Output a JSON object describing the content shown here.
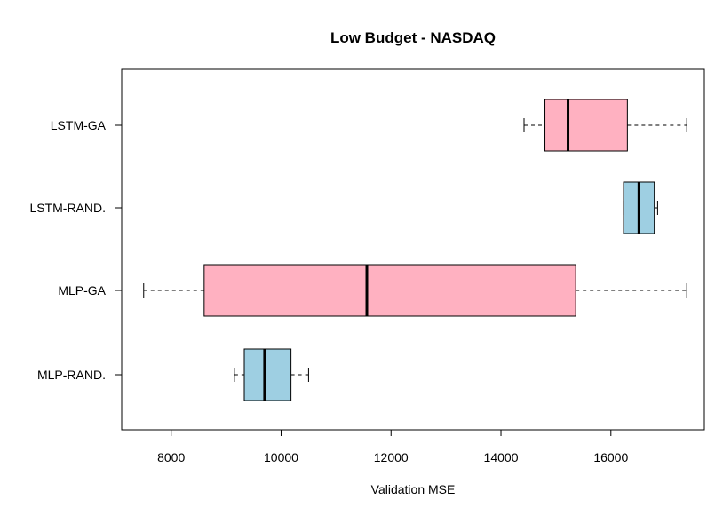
{
  "chart_data": {
    "type": "boxplot",
    "orientation": "horizontal",
    "title": "Low Budget - NASDAQ",
    "xlabel": "Validation MSE",
    "ylabel": "",
    "xlim": [
      7100,
      17700
    ],
    "x_ticks": [
      8000,
      10000,
      12000,
      14000,
      16000
    ],
    "grid": false,
    "legend": "none",
    "categories": [
      "MLP-RAND.",
      "MLP-GA",
      "LSTM-RAND.",
      "LSTM-GA"
    ],
    "boxes": [
      {
        "label": "MLP-RAND.",
        "whisker_low": 9150,
        "q1": 9330,
        "median": 9700,
        "q3": 10180,
        "whisker_high": 10500,
        "color": "#9ecfe2"
      },
      {
        "label": "MLP-GA",
        "whisker_low": 7500,
        "q1": 8600,
        "median": 11560,
        "q3": 15360,
        "whisker_high": 17380,
        "color": "#ffb1c1"
      },
      {
        "label": "LSTM-RAND.",
        "whisker_low": 16230,
        "q1": 16230,
        "median": 16510,
        "q3": 16790,
        "whisker_high": 16850,
        "color": "#9ecfe2"
      },
      {
        "label": "LSTM-GA",
        "whisker_low": 14420,
        "q1": 14800,
        "median": 15220,
        "q3": 16300,
        "whisker_high": 17380,
        "color": "#ffb1c1"
      }
    ]
  }
}
